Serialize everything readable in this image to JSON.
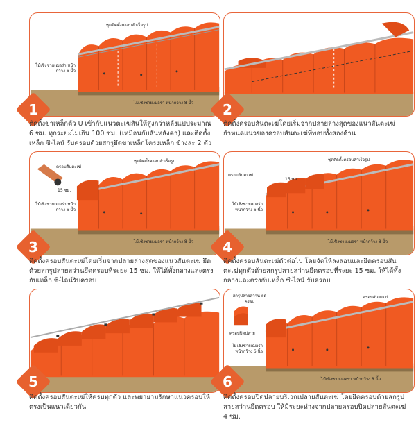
{
  "accent_color": "#e7612f",
  "tile_color": "#f05a22",
  "steps": [
    {
      "number": "1",
      "caption": "ติดตั้งขาเหล็กตัว U เข้ากับแนวตะเฆ่สันให้สูงกว่าหลังแปประมาณ 6 ซม. ทุกระยะไม่เกิน 100 ซม. (เหมือนกับสันหลังคา) และติดตั้งเหล็ก ซี-ไลน์ รับครอบด้วยสกรูยึดขาเหล็กโครงเหล็ก ข้างละ 2 ตัว",
      "label_ridge_set": "ชุดติดตั้งครอบสำเร็จรูป",
      "label_left": "ไม้เชิงชายเฌอร่า หน้ากว้าง 6 นิ้ว",
      "label_bottom": "ไม้เชิงชายเฌอร่า หน้ากว้าง 8 นิ้ว"
    },
    {
      "number": "2",
      "caption": "ติดตั้งครอบสันตะเฆ่โดยเริ่มจากปลายล่างสุดของแนวสันตะเฆ่กำหนดแนวของครอบสันตะเฆ่ที่พอบทั้งสองด้าน"
    },
    {
      "number": "3",
      "caption": "ติดตั้งครอบสันตะเฆ่โดยเริ่มจากปลายล่างสุดของแนวสันตะเฆ่ ยึดด้วยสกรูปลายสว่านยึดครอบที่ระยะ 15 ซม. ให้ได้ทั้งกลางและตรงกับเหล็ก ซี-ไลน์รับครอบ",
      "label_hip_cap": "ครอบสันตะเฆ่",
      "label_ridge_set": "ชุดติดตั้งครอบสำเร็จรูป",
      "label_dim": "15 ซม.",
      "label_left": "ไม้เชิงชายเฌอร่า หน้ากว้าง 6 นิ้ว",
      "label_bottom": "ไม้เชิงชายเฌอร่า หน้ากว้าง 8 นิ้ว"
    },
    {
      "number": "4",
      "caption": "ติดตั้งครอบสันตะเฆ่ตัวต่อไป โดยจัดให้ลงลอนและยึดครอบสันตะเฆ่ทุกตัวด้วยสกรูปลายสว่านยึดครอบที่ระยะ 15 ซม. ให้ได้ทั้งกลางและตรงกับเหล็ก ซี-ไลน์ รับครอบ",
      "label_hip_cap": "ครอบสันตะเฆ่",
      "label_ridge_set": "ชุดติดตั้งครอบสำเร็จรูป",
      "label_dim": "15 ซม.",
      "label_left": "ไม้เชิงชายเฌอร่า หน้ากว้าง 6 นิ้ว",
      "label_bottom": "ไม้เชิงชายเฌอร่า หน้ากว้าง 8 นิ้ว"
    },
    {
      "number": "5",
      "caption": "ติดตั้งครอบสันตะเฆ่ให้ครบทุกตัว และพยายามรักษาแนวครอบให้ตรงเป็นแนวเดียวกัน"
    },
    {
      "number": "6",
      "caption": "ติดตั้งครอบปิดปลายบริเวณปลายสันตะเฆ่ โดยยึดครอบด้วยสกรูปลายสว่านยึดครอบ ให้มีระยะห่างจากปลายครอบปิดปลายสันตะเฆ่ 4 ซม.",
      "label_screw": "สกรูปลายสว่าน ยึดครอบ",
      "label_end_cap": "ครอบปิดปลาย",
      "label_hip_cap": "ครอบสันตะเฆ่",
      "label_left": "ไม้เชิงชายเฌอร่า หน้ากว้าง 6 นิ้ว",
      "label_bottom": "ไม้เชิงชายเฌอร่า หน้ากว้าง 8 นิ้ว"
    }
  ]
}
